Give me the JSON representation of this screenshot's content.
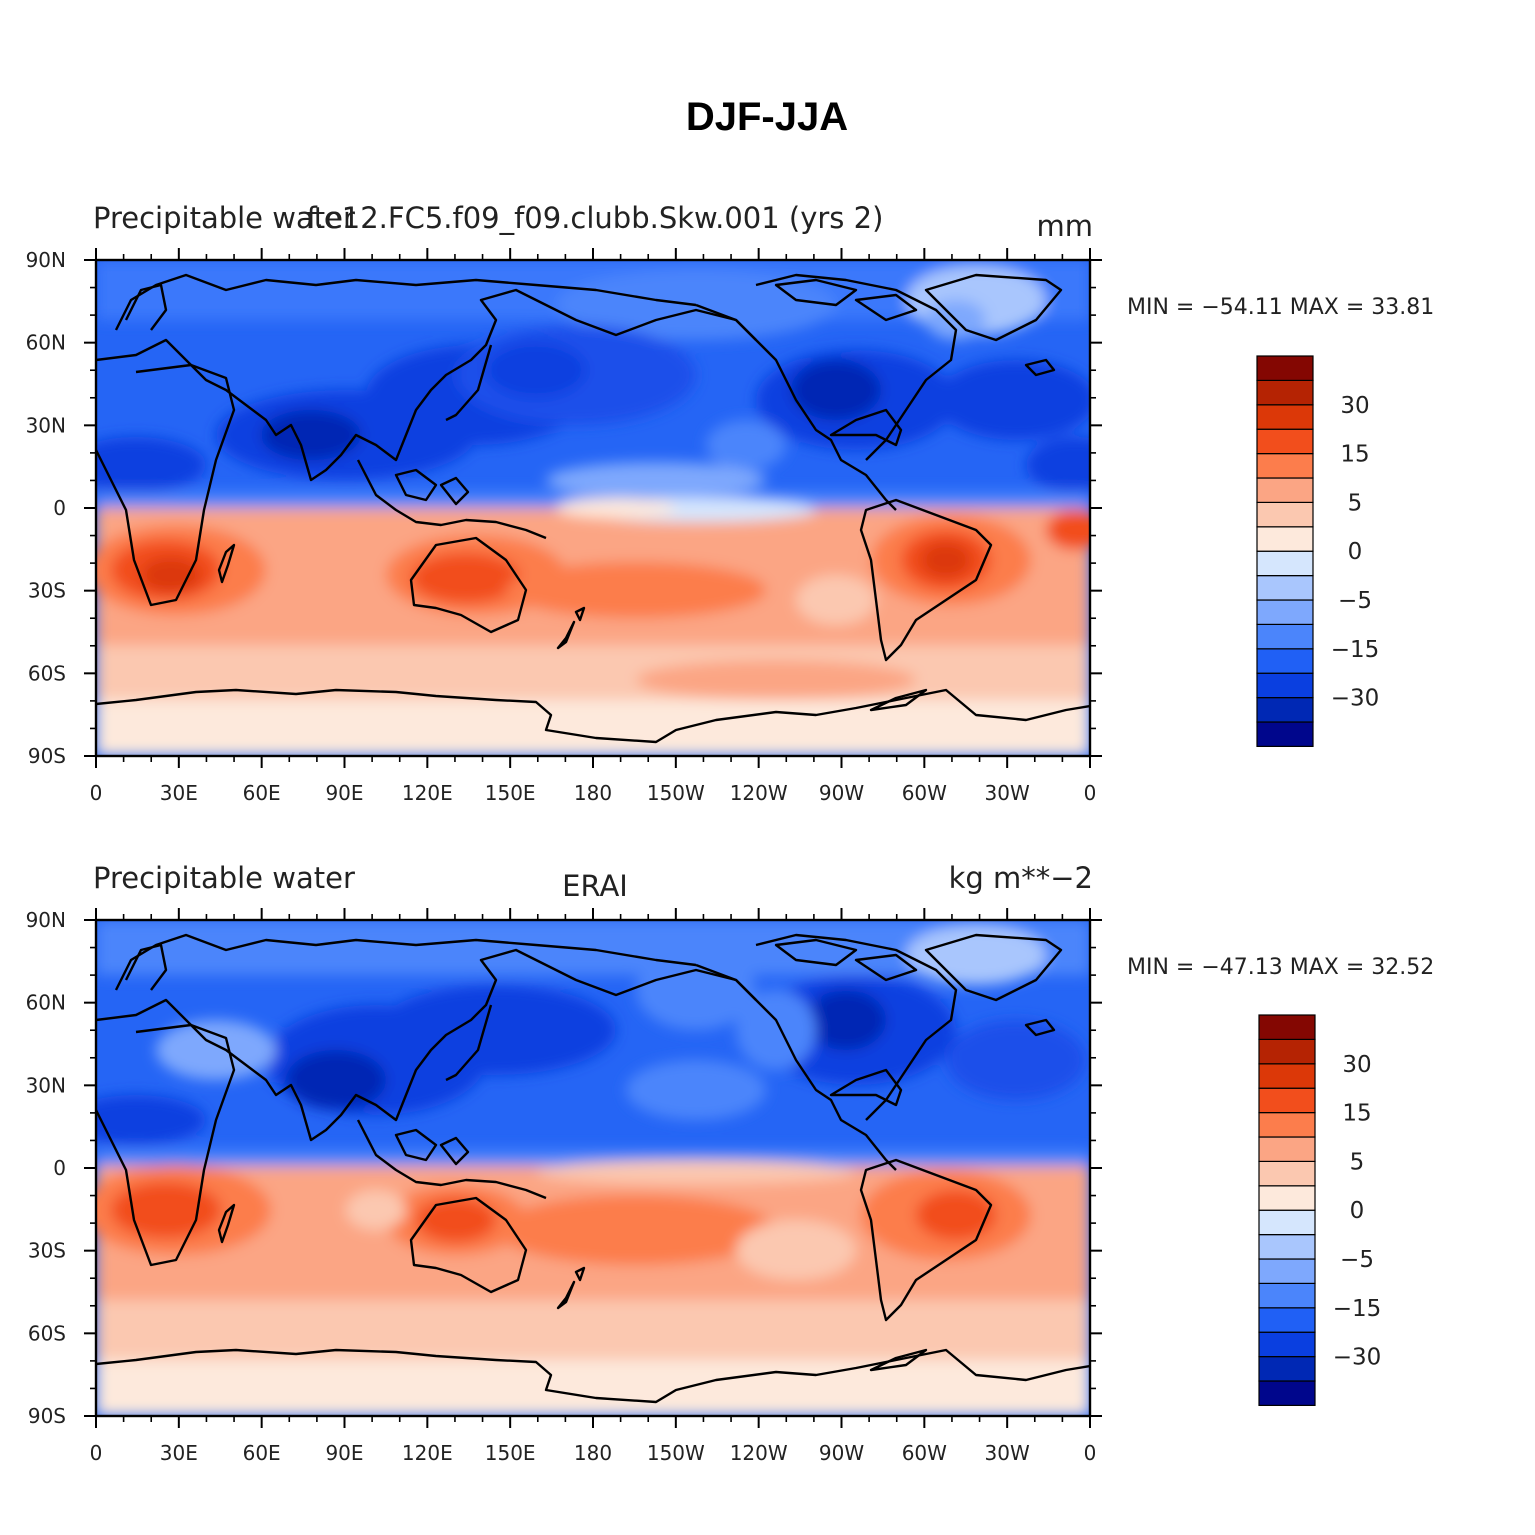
{
  "title": "DJF-JJA",
  "palette": [
    "#00068c",
    "#0028b4",
    "#0a3fe0",
    "#2060f5",
    "#4b85fb",
    "#7ea8fd",
    "#a9c6fd",
    "#d5e6fd",
    "#fde9dc",
    "#fbc8b0",
    "#fba584",
    "#fc7d4c",
    "#f24e1c",
    "#dc3808",
    "#b52303",
    "#840702"
  ],
  "colorbar_labels": [
    {
      "text": "30",
      "boundary": 14
    },
    {
      "text": "15",
      "boundary": 12
    },
    {
      "text": "5",
      "boundary": 10
    },
    {
      "text": "0",
      "boundary": 8
    },
    {
      "text": "−5",
      "boundary": 6
    },
    {
      "text": "−15",
      "boundary": 4
    },
    {
      "text": "−30",
      "boundary": 2
    }
  ],
  "x_ticks": [
    "0",
    "30E",
    "60E",
    "90E",
    "120E",
    "150E",
    "180",
    "150W",
    "120W",
    "90W",
    "60W",
    "30W",
    "0"
  ],
  "y_ticks": [
    "90N",
    "60N",
    "30N",
    "0",
    "30S",
    "60S",
    "90S"
  ],
  "panels": [
    {
      "left_label": "Precipitable water",
      "center_label": "f.e12.FC5.f09_f09.clubb.Skw.001 (yrs 2)",
      "right_label": "mm",
      "stats": "MIN = −54.11  MAX =   33.81"
    },
    {
      "left_label": "Precipitable water",
      "center_label": "ERAI",
      "right_label": "kg m**−2",
      "stats": "MIN = −47.13 MAX =   32.52"
    }
  ]
}
